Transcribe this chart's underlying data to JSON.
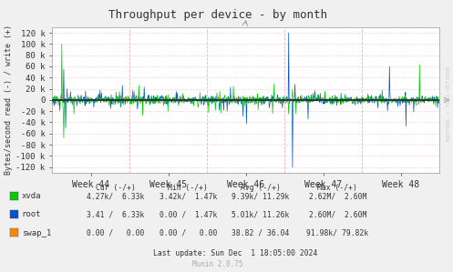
{
  "title": "Throughput per device - by month",
  "ylabel": "Bytes/second read (-) / write (+)",
  "background_color": "#f0f0f0",
  "plot_bg_color": "#ffffff",
  "grid_color_h": "#f0b0b0",
  "grid_color_v": "#f0b0b0",
  "border_color": "#aaaaaa",
  "ylim": [
    -130000,
    130000
  ],
  "yticks": [
    -120000,
    -100000,
    -80000,
    -60000,
    -40000,
    -20000,
    0,
    20000,
    40000,
    60000,
    80000,
    100000,
    120000
  ],
  "ytick_labels": [
    "-120 k",
    "-100 k",
    "-80 k",
    "-60 k",
    "-40 k",
    "-20 k",
    "0",
    "20 k",
    "40 k",
    "60 k",
    "80 k",
    "100 k",
    "120 k"
  ],
  "xtick_labels": [
    "Week 44",
    "Week 45",
    "Week 46",
    "Week 47",
    "Week 48"
  ],
  "xvda_color": "#00cc00",
  "root_color": "#0055cc",
  "swap_color": "#ff8800",
  "legend_items": [
    {
      "label": "xvda",
      "color": "#00cc00"
    },
    {
      "label": "root",
      "color": "#0055cc"
    },
    {
      "label": "swap_1",
      "color": "#ff8800"
    }
  ],
  "legend_cols": [
    {
      "header": "Cur (-/+)",
      "values": [
        "4.27k/  6.33k",
        "3.41 /  6.33k",
        "0.00 /   0.00"
      ]
    },
    {
      "header": "Min (-/+)",
      "values": [
        "3.42k/  1.47k",
        "0.00 /  1.47k",
        "0.00 /   0.00"
      ]
    },
    {
      "header": "Avg (-/+)",
      "values": [
        "9.39k/ 11.29k",
        "5.01k/ 11.26k",
        "38.82 / 36.04"
      ]
    },
    {
      "header": "Max (-/+)",
      "values": [
        "2.62M/  2.60M",
        "2.60M/  2.60M",
        "91.98k/ 79.82k"
      ]
    }
  ],
  "footer": "Last update: Sun Dec  1 18:05:00 2024",
  "munin_version": "Munin 2.0.75",
  "right_label": "RRDTOOL / TOBI OETIKER",
  "n_points": 800
}
